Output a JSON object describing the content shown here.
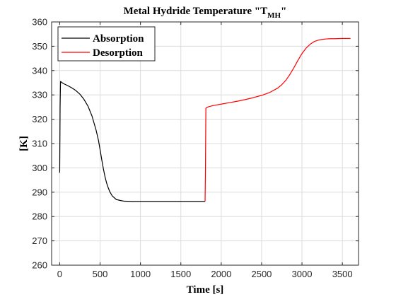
{
  "chart_data": {
    "type": "line",
    "title_main": "Metal Hydride Temperature \"T",
    "title_sub": "MH",
    "title_end": "\"",
    "xlabel": "Time [s]",
    "ylabel": "[K]",
    "xlim": [
      -100,
      3700
    ],
    "ylim": [
      260,
      360
    ],
    "xticks": [
      0,
      500,
      1000,
      1500,
      2000,
      2500,
      3000,
      3500
    ],
    "yticks": [
      260,
      270,
      280,
      290,
      300,
      310,
      320,
      330,
      340,
      350,
      360
    ],
    "grid": true,
    "legend_position": "top-left",
    "series": [
      {
        "name": "Absorption",
        "color": "#000000",
        "x": [
          0,
          5,
          10,
          20,
          30,
          50,
          100,
          150,
          200,
          250,
          300,
          350,
          400,
          450,
          480,
          500,
          520,
          540,
          560,
          580,
          600,
          620,
          650,
          700,
          750,
          800,
          900,
          1000,
          1200,
          1400,
          1600,
          1800
        ],
        "y": [
          298,
          325,
          335.5,
          335.3,
          335.0,
          334.6,
          333.8,
          332.9,
          331.8,
          330.3,
          328.2,
          325.4,
          321.3,
          315.6,
          311.3,
          307.5,
          303.5,
          299.8,
          296.5,
          293.9,
          291.9,
          290.2,
          288.5,
          287.0,
          286.6,
          286.3,
          286.2,
          286.2,
          286.2,
          286.2,
          286.2,
          286.2
        ]
      },
      {
        "name": "Desorption",
        "color": "#ff0000",
        "x": [
          1800,
          1805,
          1810,
          1820,
          1850,
          1900,
          2000,
          2100,
          2200,
          2300,
          2400,
          2500,
          2600,
          2700,
          2750,
          2800,
          2850,
          2900,
          2950,
          3000,
          3050,
          3100,
          3150,
          3200,
          3250,
          3300,
          3350,
          3400,
          3500,
          3600
        ],
        "y": [
          286.2,
          300,
          324.5,
          324.8,
          325.2,
          325.6,
          326.2,
          326.8,
          327.4,
          328.1,
          328.9,
          329.8,
          331.0,
          332.8,
          334.2,
          336.0,
          338.4,
          341.2,
          344.2,
          347.0,
          349.2,
          350.8,
          351.9,
          352.5,
          352.8,
          353.0,
          353.1,
          353.1,
          353.2,
          353.2
        ]
      }
    ]
  }
}
